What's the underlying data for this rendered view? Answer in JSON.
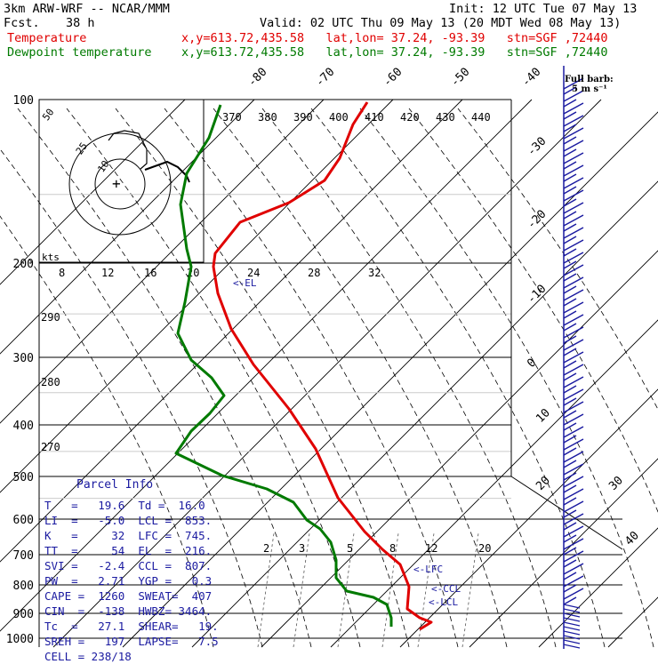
{
  "header": {
    "model": "3km ARW-WRF -- NCAR/MMM",
    "init": "Init: 12 UTC Tue 07 May 13",
    "fcst_label": "Fcst.",
    "fcst_value": "38 h",
    "valid": "Valid: 02 UTC Thu 09 May 13 (20 MDT Wed 08 May 13)",
    "temp_label": "Temperature",
    "temp_info": "x,y=613.72,435.58   lat,lon= 37.24, -93.39   stn=SGF ,72440",
    "dew_label": "Dewpoint temperature",
    "dew_info": "x,y=613.72,435.58   lat,lon= 37.24, -93.39   stn=SGF ,72440"
  },
  "barb_legend": {
    "line1": "Full barb:",
    "line2": "5 m s⁻¹"
  },
  "hodograph": {
    "unit": "kts",
    "ring_labels": [
      "50",
      "25",
      "10"
    ]
  },
  "parcel": {
    "title": "Parcel Info",
    "rows": [
      "T   =   19.6  Td =  16.0",
      "LI  =   -5.0  LCL =  853.",
      "K   =     32  LFC =  745.",
      "TT  =     54  EL  =  216.",
      "SVI =   -2.4  CCL =  807.",
      "PW  =   2.71  YGP =   0.3",
      "CAPE =  1260  SWEAT=  407",
      "CIN  =  -138  HWBZ= 3464.",
      "Tc  =   27.1  SHEAR=   19.",
      "SREH =   197  LAPSE=   7.5",
      "CELL = 238/18"
    ]
  },
  "colors": {
    "temperature": "#e00000",
    "dewpoint": "#007a00",
    "info": "#1a1aa0",
    "barbs": "#1a1aa0"
  },
  "chart_data": {
    "type": "line",
    "title": "",
    "y_axis": "pressure (hPa), log scale",
    "pressure_ticks": [
      100,
      200,
      300,
      400,
      500,
      600,
      700,
      800,
      900,
      1000
    ],
    "isotherm_labels": [
      "-80",
      "-70",
      "-60",
      "-50",
      "-40",
      "-30",
      "-20",
      "-10",
      "0",
      "10",
      "20",
      "30",
      "40"
    ],
    "theta_labels": [
      "370",
      "380",
      "390",
      "400",
      "410",
      "420",
      "430",
      "440"
    ],
    "theta_lower_labels": [
      "290",
      "280",
      "270"
    ],
    "shear_labels": [
      "8",
      "12",
      "16",
      "20",
      "24",
      "28",
      "32"
    ],
    "mixing_ratio_labels": [
      "2",
      "3",
      "5",
      "8",
      "12",
      "20"
    ],
    "level_markers": [
      "EL",
      "LFC",
      "CCL",
      "LCL"
    ],
    "series": [
      {
        "name": "Temperature",
        "color": "#e00000",
        "points": [
          [
            413,
            115
          ],
          [
            397,
            140
          ],
          [
            382,
            178
          ],
          [
            365,
            203
          ],
          [
            325,
            228
          ],
          [
            270,
            250
          ],
          [
            242,
            285
          ],
          [
            240,
            300
          ],
          [
            245,
            330
          ],
          [
            260,
            370
          ],
          [
            285,
            410
          ],
          [
            325,
            460
          ],
          [
            355,
            505
          ],
          [
            380,
            560
          ],
          [
            410,
            598
          ],
          [
            430,
            618
          ],
          [
            450,
            635
          ],
          [
            460,
            660
          ],
          [
            458,
            685
          ],
          [
            472,
            695
          ],
          [
            485,
            700
          ],
          [
            472,
            708
          ]
        ]
      },
      {
        "name": "Dewpoint temperature",
        "color": "#007a00",
        "points": [
          [
            248,
            118
          ],
          [
            235,
            155
          ],
          [
            210,
            195
          ],
          [
            203,
            230
          ],
          [
            210,
            280
          ],
          [
            215,
            300
          ],
          [
            208,
            340
          ],
          [
            200,
            375
          ],
          [
            215,
            405
          ],
          [
            238,
            425
          ],
          [
            252,
            445
          ],
          [
            236,
            465
          ],
          [
            215,
            485
          ],
          [
            198,
            510
          ],
          [
            250,
            535
          ],
          [
            300,
            550
          ],
          [
            330,
            565
          ],
          [
            345,
            585
          ],
          [
            360,
            595
          ],
          [
            372,
            610
          ],
          [
            378,
            630
          ],
          [
            378,
            650
          ],
          [
            390,
            665
          ],
          [
            420,
            672
          ],
          [
            435,
            680
          ],
          [
            440,
            695
          ],
          [
            440,
            705
          ]
        ]
      }
    ],
    "annotations": [
      "Full barb:",
      "5 m s⁻¹"
    ]
  }
}
